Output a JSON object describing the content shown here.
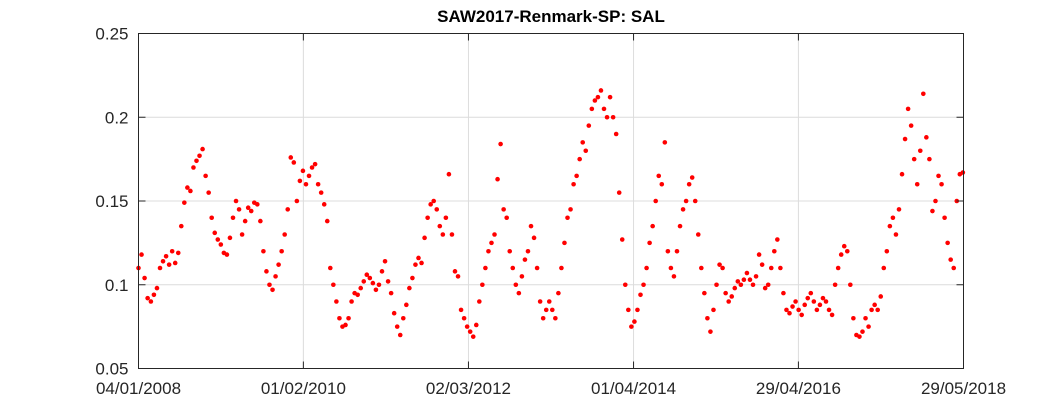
{
  "chart_data": {
    "type": "scatter",
    "title": "SAW2017-Renmark-SP: SAL",
    "xlabel": "",
    "ylabel": "",
    "xlim": [
      "2008-01-04",
      "2018-05-29"
    ],
    "ylim": [
      0.05,
      0.25
    ],
    "grid": true,
    "marker_color": "#ff0000",
    "x_ticks": [
      {
        "date": "2008-01-04",
        "label": "04/01/2008"
      },
      {
        "date": "2010-02-01",
        "label": "01/02/2010"
      },
      {
        "date": "2012-03-02",
        "label": "02/03/2012"
      },
      {
        "date": "2014-04-01",
        "label": "01/04/2014"
      },
      {
        "date": "2016-04-29",
        "label": "29/04/2016"
      },
      {
        "date": "2018-05-29",
        "label": "29/05/2018"
      }
    ],
    "y_ticks": [
      {
        "value": 0.05,
        "label": "0.05"
      },
      {
        "value": 0.1,
        "label": "0.1"
      },
      {
        "value": 0.15,
        "label": "0.15"
      },
      {
        "value": 0.2,
        "label": "0.2"
      },
      {
        "value": 0.25,
        "label": "0.25"
      }
    ],
    "series": [
      {
        "color": "#ff0000",
        "points": [
          [
            "2008-01-04",
            0.11
          ],
          [
            "2008-01-18",
            0.118
          ],
          [
            "2008-02-01",
            0.104
          ],
          [
            "2008-02-15",
            0.092
          ],
          [
            "2008-03-01",
            0.09
          ],
          [
            "2008-03-15",
            0.094
          ],
          [
            "2008-03-29",
            0.098
          ],
          [
            "2008-04-12",
            0.11
          ],
          [
            "2008-04-26",
            0.114
          ],
          [
            "2008-05-10",
            0.117
          ],
          [
            "2008-05-24",
            0.112
          ],
          [
            "2008-06-07",
            0.12
          ],
          [
            "2008-06-21",
            0.113
          ],
          [
            "2008-07-05",
            0.119
          ],
          [
            "2008-07-19",
            0.135
          ],
          [
            "2008-08-02",
            0.149
          ],
          [
            "2008-08-16",
            0.158
          ],
          [
            "2008-08-30",
            0.156
          ],
          [
            "2008-09-13",
            0.17
          ],
          [
            "2008-09-27",
            0.174
          ],
          [
            "2008-10-11",
            0.177
          ],
          [
            "2008-10-25",
            0.181
          ],
          [
            "2008-11-08",
            0.165
          ],
          [
            "2008-11-22",
            0.155
          ],
          [
            "2008-12-06",
            0.14
          ],
          [
            "2008-12-20",
            0.131
          ],
          [
            "2009-01-03",
            0.127
          ],
          [
            "2009-01-17",
            0.124
          ],
          [
            "2009-01-31",
            0.119
          ],
          [
            "2009-02-14",
            0.118
          ],
          [
            "2009-02-28",
            0.128
          ],
          [
            "2009-03-14",
            0.14
          ],
          [
            "2009-03-28",
            0.15
          ],
          [
            "2009-04-11",
            0.145
          ],
          [
            "2009-04-25",
            0.13
          ],
          [
            "2009-05-09",
            0.138
          ],
          [
            "2009-05-23",
            0.146
          ],
          [
            "2009-06-06",
            0.144
          ],
          [
            "2009-06-20",
            0.149
          ],
          [
            "2009-07-04",
            0.148
          ],
          [
            "2009-07-18",
            0.138
          ],
          [
            "2009-08-01",
            0.12
          ],
          [
            "2009-08-15",
            0.108
          ],
          [
            "2009-08-29",
            0.1
          ],
          [
            "2009-09-12",
            0.097
          ],
          [
            "2009-09-26",
            0.105
          ],
          [
            "2009-10-10",
            0.112
          ],
          [
            "2009-10-24",
            0.12
          ],
          [
            "2009-11-07",
            0.13
          ],
          [
            "2009-11-21",
            0.145
          ],
          [
            "2009-12-05",
            0.176
          ],
          [
            "2009-12-19",
            0.173
          ],
          [
            "2010-01-02",
            0.15
          ],
          [
            "2010-01-16",
            0.162
          ],
          [
            "2010-01-30",
            0.168
          ],
          [
            "2010-02-13",
            0.16
          ],
          [
            "2010-02-27",
            0.165
          ],
          [
            "2010-03-13",
            0.17
          ],
          [
            "2010-03-27",
            0.172
          ],
          [
            "2010-04-10",
            0.16
          ],
          [
            "2010-04-24",
            0.155
          ],
          [
            "2010-05-08",
            0.148
          ],
          [
            "2010-05-22",
            0.138
          ],
          [
            "2010-06-05",
            0.11
          ],
          [
            "2010-06-19",
            0.1
          ],
          [
            "2010-07-03",
            0.09
          ],
          [
            "2010-07-17",
            0.08
          ],
          [
            "2010-07-31",
            0.075
          ],
          [
            "2010-08-14",
            0.076
          ],
          [
            "2010-08-28",
            0.08
          ],
          [
            "2010-09-11",
            0.09
          ],
          [
            "2010-09-25",
            0.095
          ],
          [
            "2010-10-09",
            0.094
          ],
          [
            "2010-10-23",
            0.098
          ],
          [
            "2010-11-06",
            0.102
          ],
          [
            "2010-11-20",
            0.106
          ],
          [
            "2010-12-04",
            0.104
          ],
          [
            "2010-12-18",
            0.101
          ],
          [
            "2011-01-01",
            0.097
          ],
          [
            "2011-01-15",
            0.1
          ],
          [
            "2011-01-29",
            0.108
          ],
          [
            "2011-02-12",
            0.114
          ],
          [
            "2011-02-26",
            0.102
          ],
          [
            "2011-03-12",
            0.095
          ],
          [
            "2011-03-26",
            0.083
          ],
          [
            "2011-04-09",
            0.075
          ],
          [
            "2011-04-23",
            0.07
          ],
          [
            "2011-05-07",
            0.08
          ],
          [
            "2011-05-21",
            0.088
          ],
          [
            "2011-06-04",
            0.098
          ],
          [
            "2011-06-18",
            0.104
          ],
          [
            "2011-07-02",
            0.112
          ],
          [
            "2011-07-16",
            0.116
          ],
          [
            "2011-07-30",
            0.113
          ],
          [
            "2011-08-13",
            0.128
          ],
          [
            "2011-08-27",
            0.14
          ],
          [
            "2011-09-10",
            0.148
          ],
          [
            "2011-09-24",
            0.15
          ],
          [
            "2011-10-08",
            0.145
          ],
          [
            "2011-10-22",
            0.135
          ],
          [
            "2011-11-05",
            0.13
          ],
          [
            "2011-11-19",
            0.14
          ],
          [
            "2011-12-03",
            0.166
          ],
          [
            "2011-12-17",
            0.13
          ],
          [
            "2011-12-31",
            0.108
          ],
          [
            "2012-01-14",
            0.105
          ],
          [
            "2012-01-28",
            0.085
          ],
          [
            "2012-02-11",
            0.08
          ],
          [
            "2012-02-25",
            0.075
          ],
          [
            "2012-03-10",
            0.072
          ],
          [
            "2012-03-24",
            0.069
          ],
          [
            "2012-04-07",
            0.076
          ],
          [
            "2012-04-21",
            0.09
          ],
          [
            "2012-05-05",
            0.1
          ],
          [
            "2012-05-19",
            0.11
          ],
          [
            "2012-06-02",
            0.12
          ],
          [
            "2012-06-16",
            0.125
          ],
          [
            "2012-06-30",
            0.13
          ],
          [
            "2012-07-14",
            0.163
          ],
          [
            "2012-07-28",
            0.184
          ],
          [
            "2012-08-11",
            0.145
          ],
          [
            "2012-08-25",
            0.14
          ],
          [
            "2012-09-08",
            0.12
          ],
          [
            "2012-09-22",
            0.11
          ],
          [
            "2012-10-06",
            0.1
          ],
          [
            "2012-10-20",
            0.095
          ],
          [
            "2012-11-03",
            0.105
          ],
          [
            "2012-11-17",
            0.115
          ],
          [
            "2012-12-01",
            0.12
          ],
          [
            "2012-12-15",
            0.135
          ],
          [
            "2012-12-29",
            0.128
          ],
          [
            "2013-01-12",
            0.11
          ],
          [
            "2013-01-26",
            0.09
          ],
          [
            "2013-02-09",
            0.08
          ],
          [
            "2013-02-23",
            0.085
          ],
          [
            "2013-03-09",
            0.09
          ],
          [
            "2013-03-23",
            0.085
          ],
          [
            "2013-04-06",
            0.08
          ],
          [
            "2013-04-20",
            0.095
          ],
          [
            "2013-05-04",
            0.11
          ],
          [
            "2013-05-18",
            0.125
          ],
          [
            "2013-06-01",
            0.14
          ],
          [
            "2013-06-15",
            0.145
          ],
          [
            "2013-06-29",
            0.16
          ],
          [
            "2013-07-13",
            0.165
          ],
          [
            "2013-07-27",
            0.175
          ],
          [
            "2013-08-10",
            0.185
          ],
          [
            "2013-08-24",
            0.18
          ],
          [
            "2013-09-07",
            0.195
          ],
          [
            "2013-09-21",
            0.205
          ],
          [
            "2013-10-05",
            0.21
          ],
          [
            "2013-10-19",
            0.212
          ],
          [
            "2013-11-02",
            0.216
          ],
          [
            "2013-11-16",
            0.205
          ],
          [
            "2013-11-30",
            0.2
          ],
          [
            "2013-12-14",
            0.212
          ],
          [
            "2013-12-28",
            0.2
          ],
          [
            "2014-01-11",
            0.19
          ],
          [
            "2014-01-25",
            0.155
          ],
          [
            "2014-02-08",
            0.127
          ],
          [
            "2014-02-22",
            0.1
          ],
          [
            "2014-03-08",
            0.085
          ],
          [
            "2014-03-22",
            0.075
          ],
          [
            "2014-04-05",
            0.078
          ],
          [
            "2014-04-19",
            0.085
          ],
          [
            "2014-05-03",
            0.094
          ],
          [
            "2014-05-17",
            0.1
          ],
          [
            "2014-05-31",
            0.11
          ],
          [
            "2014-06-14",
            0.125
          ],
          [
            "2014-06-28",
            0.135
          ],
          [
            "2014-07-12",
            0.15
          ],
          [
            "2014-07-26",
            0.165
          ],
          [
            "2014-08-09",
            0.16
          ],
          [
            "2014-08-23",
            0.185
          ],
          [
            "2014-09-06",
            0.12
          ],
          [
            "2014-09-20",
            0.11
          ],
          [
            "2014-10-04",
            0.105
          ],
          [
            "2014-10-18",
            0.12
          ],
          [
            "2014-11-01",
            0.135
          ],
          [
            "2014-11-15",
            0.145
          ],
          [
            "2014-11-29",
            0.15
          ],
          [
            "2014-12-13",
            0.16
          ],
          [
            "2014-12-27",
            0.164
          ],
          [
            "2015-01-10",
            0.15
          ],
          [
            "2015-01-24",
            0.13
          ],
          [
            "2015-02-07",
            0.11
          ],
          [
            "2015-02-21",
            0.095
          ],
          [
            "2015-03-07",
            0.08
          ],
          [
            "2015-03-21",
            0.072
          ],
          [
            "2015-04-04",
            0.085
          ],
          [
            "2015-04-18",
            0.1
          ],
          [
            "2015-05-02",
            0.112
          ],
          [
            "2015-05-16",
            0.11
          ],
          [
            "2015-05-30",
            0.095
          ],
          [
            "2015-06-13",
            0.09
          ],
          [
            "2015-06-27",
            0.093
          ],
          [
            "2015-07-11",
            0.098
          ],
          [
            "2015-07-25",
            0.102
          ],
          [
            "2015-08-08",
            0.1
          ],
          [
            "2015-08-22",
            0.103
          ],
          [
            "2015-09-05",
            0.107
          ],
          [
            "2015-09-19",
            0.103
          ],
          [
            "2015-10-03",
            0.1
          ],
          [
            "2015-10-17",
            0.105
          ],
          [
            "2015-10-31",
            0.118
          ],
          [
            "2015-11-14",
            0.112
          ],
          [
            "2015-11-28",
            0.098
          ],
          [
            "2015-12-12",
            0.1
          ],
          [
            "2015-12-26",
            0.11
          ],
          [
            "2016-01-09",
            0.12
          ],
          [
            "2016-01-23",
            0.127
          ],
          [
            "2016-02-06",
            0.11
          ],
          [
            "2016-02-20",
            0.095
          ],
          [
            "2016-03-05",
            0.085
          ],
          [
            "2016-03-19",
            0.083
          ],
          [
            "2016-04-02",
            0.087
          ],
          [
            "2016-04-16",
            0.09
          ],
          [
            "2016-04-30",
            0.085
          ],
          [
            "2016-05-14",
            0.082
          ],
          [
            "2016-05-28",
            0.088
          ],
          [
            "2016-06-11",
            0.092
          ],
          [
            "2016-06-25",
            0.095
          ],
          [
            "2016-07-09",
            0.09
          ],
          [
            "2016-07-23",
            0.085
          ],
          [
            "2016-08-06",
            0.088
          ],
          [
            "2016-08-20",
            0.092
          ],
          [
            "2016-09-03",
            0.09
          ],
          [
            "2016-09-17",
            0.085
          ],
          [
            "2016-10-01",
            0.082
          ],
          [
            "2016-10-15",
            0.1
          ],
          [
            "2016-10-29",
            0.11
          ],
          [
            "2016-11-12",
            0.118
          ],
          [
            "2016-11-26",
            0.123
          ],
          [
            "2016-12-10",
            0.12
          ],
          [
            "2016-12-24",
            0.1
          ],
          [
            "2017-01-07",
            0.08
          ],
          [
            "2017-01-21",
            0.07
          ],
          [
            "2017-02-04",
            0.069
          ],
          [
            "2017-02-18",
            0.072
          ],
          [
            "2017-03-04",
            0.08
          ],
          [
            "2017-03-18",
            0.075
          ],
          [
            "2017-04-01",
            0.085
          ],
          [
            "2017-04-15",
            0.088
          ],
          [
            "2017-04-29",
            0.085
          ],
          [
            "2017-05-13",
            0.093
          ],
          [
            "2017-05-27",
            0.11
          ],
          [
            "2017-06-10",
            0.12
          ],
          [
            "2017-06-24",
            0.135
          ],
          [
            "2017-07-08",
            0.14
          ],
          [
            "2017-07-22",
            0.13
          ],
          [
            "2017-08-05",
            0.145
          ],
          [
            "2017-08-19",
            0.166
          ],
          [
            "2017-09-02",
            0.187
          ],
          [
            "2017-09-16",
            0.205
          ],
          [
            "2017-09-30",
            0.195
          ],
          [
            "2017-10-14",
            0.175
          ],
          [
            "2017-10-28",
            0.16
          ],
          [
            "2017-11-11",
            0.18
          ],
          [
            "2017-11-25",
            0.214
          ],
          [
            "2017-12-09",
            0.188
          ],
          [
            "2017-12-23",
            0.175
          ],
          [
            "2018-01-06",
            0.144
          ],
          [
            "2018-01-20",
            0.15
          ],
          [
            "2018-02-03",
            0.165
          ],
          [
            "2018-02-17",
            0.16
          ],
          [
            "2018-03-03",
            0.14
          ],
          [
            "2018-03-17",
            0.125
          ],
          [
            "2018-03-31",
            0.115
          ],
          [
            "2018-04-14",
            0.11
          ],
          [
            "2018-04-28",
            0.15
          ],
          [
            "2018-05-12",
            0.166
          ],
          [
            "2018-05-26",
            0.167
          ]
        ]
      }
    ]
  }
}
